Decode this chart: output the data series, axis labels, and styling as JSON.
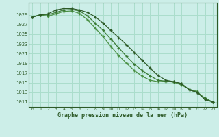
{
  "title": "Graphe pression niveau de la mer (hPa)",
  "bg_color": "#cceee8",
  "grid_color": "#aaddcc",
  "line_color_1": "#2d5a27",
  "line_color_2": "#3a7a34",
  "line_color_3": "#4a9044",
  "xlim": [
    -0.5,
    23.5
  ],
  "ylim": [
    1010.0,
    1031.5
  ],
  "yticks": [
    1011,
    1013,
    1015,
    1017,
    1019,
    1021,
    1023,
    1025,
    1027,
    1029
  ],
  "xticks": [
    0,
    1,
    2,
    3,
    4,
    5,
    6,
    7,
    8,
    9,
    10,
    11,
    12,
    13,
    14,
    15,
    16,
    17,
    18,
    19,
    20,
    21,
    22,
    23
  ],
  "series1": [
    1028.5,
    1029.0,
    1029.2,
    1030.0,
    1030.3,
    1030.3,
    1030.0,
    1029.5,
    1028.6,
    1027.3,
    1025.8,
    1024.3,
    1022.8,
    1021.2,
    1019.6,
    1018.0,
    1016.5,
    1015.5,
    1015.2,
    1014.8,
    1013.5,
    1013.0,
    1011.5,
    1011.0
  ],
  "series2": [
    1028.5,
    1029.0,
    1029.0,
    1029.5,
    1030.0,
    1030.1,
    1029.8,
    1028.8,
    1027.3,
    1025.8,
    1024.0,
    1022.2,
    1020.4,
    1018.8,
    1017.5,
    1016.4,
    1015.5,
    1015.3,
    1015.2,
    1014.8,
    1013.5,
    1013.0,
    1011.8,
    1011.0
  ],
  "series3": [
    1028.5,
    1029.0,
    1028.7,
    1029.2,
    1029.7,
    1029.8,
    1029.3,
    1028.0,
    1026.3,
    1024.5,
    1022.5,
    1020.6,
    1019.0,
    1017.5,
    1016.3,
    1015.5,
    1015.2,
    1015.3,
    1015.1,
    1014.5,
    1013.6,
    1013.2,
    1011.5,
    1011.0
  ]
}
